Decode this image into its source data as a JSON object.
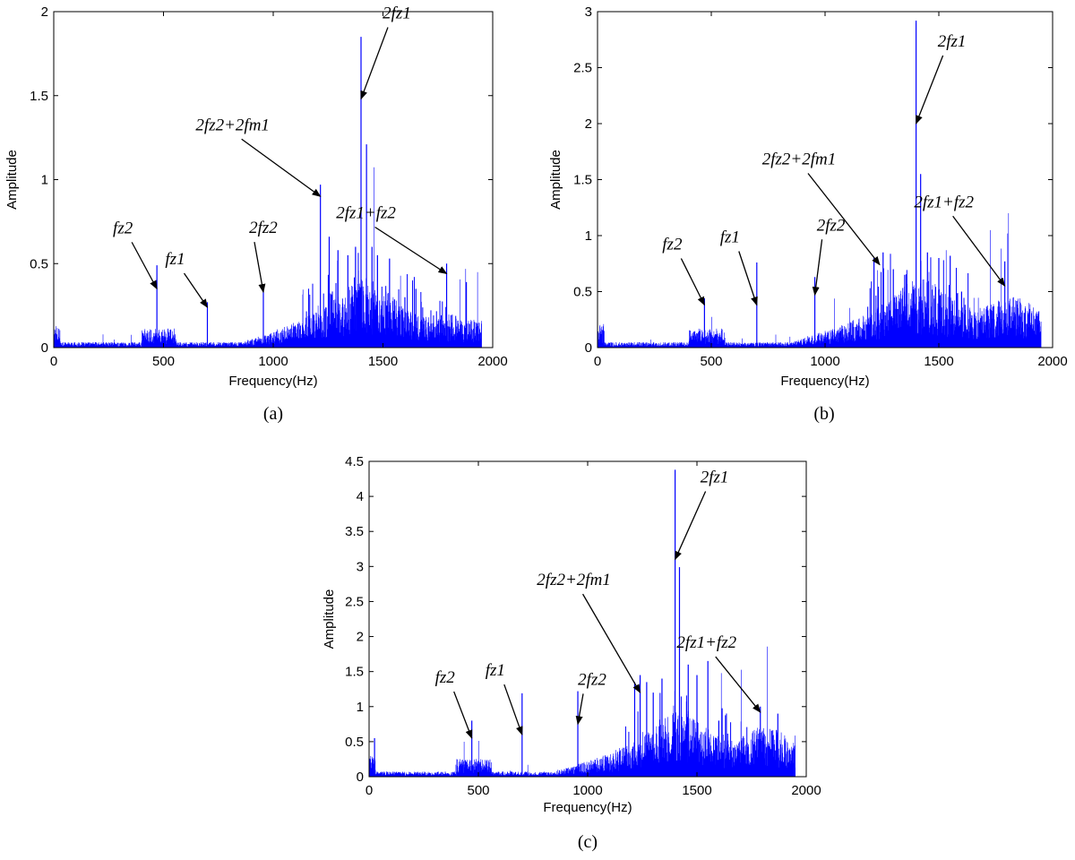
{
  "figure": {
    "panels": [
      {
        "id": "a",
        "label": "(a)"
      },
      {
        "id": "b",
        "label": "(b)"
      },
      {
        "id": "c",
        "label": "(c)"
      }
    ]
  },
  "chart_data": [
    {
      "panel": "(a)",
      "type": "line",
      "style": "spectrum stems",
      "color": "#0000ff",
      "xlabel": "Frequency(Hz)",
      "ylabel": "Amplitude",
      "xlim": [
        0,
        2000
      ],
      "ylim": [
        0,
        2
      ],
      "xticks": [
        0,
        500,
        1000,
        1500,
        2000
      ],
      "yticks": [
        0,
        0.5,
        1,
        1.5,
        2
      ],
      "ytick_labels": [
        "0",
        "0.5",
        "1",
        "1.5",
        "2"
      ],
      "peaks": [
        {
          "x": 470,
          "y": 0.49
        },
        {
          "x": 700,
          "y": 0.27
        },
        {
          "x": 955,
          "y": 0.36
        },
        {
          "x": 1215,
          "y": 0.97
        },
        {
          "x": 1255,
          "y": 0.66
        },
        {
          "x": 1295,
          "y": 0.58
        },
        {
          "x": 1340,
          "y": 0.55
        },
        {
          "x": 1375,
          "y": 0.6
        },
        {
          "x": 1400,
          "y": 1.85
        },
        {
          "x": 1425,
          "y": 1.21
        },
        {
          "x": 1450,
          "y": 0.6
        },
        {
          "x": 1475,
          "y": 0.55
        },
        {
          "x": 1530,
          "y": 0.53
        },
        {
          "x": 1600,
          "y": 0.3
        },
        {
          "x": 1650,
          "y": 0.35
        },
        {
          "x": 1790,
          "y": 0.5
        },
        {
          "x": 1880,
          "y": 0.39
        }
      ],
      "annotations": [
        {
          "text": "fz2",
          "x": 470,
          "y": 0.35
        },
        {
          "text": "fz1",
          "x": 700,
          "y": 0.24
        },
        {
          "text": "2fz2",
          "x": 955,
          "y": 0.33
        },
        {
          "text": "2fz2+2fm1",
          "x": 1215,
          "y": 0.9
        },
        {
          "text": "2fz1",
          "x": 1400,
          "y": 1.48
        },
        {
          "text": "2fz1+fz2",
          "x": 1790,
          "y": 0.44
        }
      ]
    },
    {
      "panel": "(b)",
      "type": "line",
      "style": "spectrum stems",
      "color": "#0000ff",
      "xlabel": "Frequency(Hz)",
      "ylabel": "Amplitude",
      "xlim": [
        0,
        2000
      ],
      "ylim": [
        0,
        3
      ],
      "xticks": [
        0,
        500,
        1000,
        1500,
        2000
      ],
      "yticks": [
        0,
        0.5,
        1,
        1.5,
        2,
        2.5,
        3
      ],
      "ytick_labels": [
        "0",
        "0.5",
        "1",
        "1.5",
        "2",
        "2.5",
        "3"
      ],
      "peaks": [
        {
          "x": 470,
          "y": 0.44
        },
        {
          "x": 700,
          "y": 0.76
        },
        {
          "x": 955,
          "y": 0.63
        },
        {
          "x": 1215,
          "y": 0.8
        },
        {
          "x": 1255,
          "y": 0.85
        },
        {
          "x": 1300,
          "y": 0.7
        },
        {
          "x": 1350,
          "y": 0.65
        },
        {
          "x": 1400,
          "y": 2.92
        },
        {
          "x": 1420,
          "y": 1.55
        },
        {
          "x": 1450,
          "y": 0.85
        },
        {
          "x": 1500,
          "y": 0.8
        },
        {
          "x": 1550,
          "y": 0.82
        },
        {
          "x": 1600,
          "y": 0.5
        },
        {
          "x": 1790,
          "y": 0.77
        },
        {
          "x": 1880,
          "y": 0.35
        }
      ],
      "annotations": [
        {
          "text": "fz2",
          "x": 470,
          "y": 0.38
        },
        {
          "text": "fz1",
          "x": 700,
          "y": 0.38
        },
        {
          "text": "2fz2",
          "x": 955,
          "y": 0.47
        },
        {
          "text": "2fz2+2fm1",
          "x": 1240,
          "y": 0.74
        },
        {
          "text": "2fz1",
          "x": 1400,
          "y": 2.0
        },
        {
          "text": "2fz1+fz2",
          "x": 1790,
          "y": 0.55
        }
      ]
    },
    {
      "panel": "(c)",
      "type": "line",
      "style": "spectrum stems",
      "color": "#0000ff",
      "xlabel": "Frequency(Hz)",
      "ylabel": "Amplitude",
      "xlim": [
        0,
        2000
      ],
      "ylim": [
        0,
        4.5
      ],
      "xticks": [
        0,
        500,
        1000,
        1500,
        2000
      ],
      "yticks": [
        0,
        0.5,
        1,
        1.5,
        2,
        2.5,
        3,
        3.5,
        4,
        4.5
      ],
      "ytick_labels": [
        "0",
        "0.5",
        "1",
        "1.5",
        "2",
        "2.5",
        "3",
        "3.5",
        "4",
        "4.5"
      ],
      "peaks": [
        {
          "x": 25,
          "y": 0.55
        },
        {
          "x": 470,
          "y": 0.8
        },
        {
          "x": 700,
          "y": 1.19
        },
        {
          "x": 955,
          "y": 1.22
        },
        {
          "x": 1215,
          "y": 1.35
        },
        {
          "x": 1240,
          "y": 1.45
        },
        {
          "x": 1270,
          "y": 1.35
        },
        {
          "x": 1300,
          "y": 1.2
        },
        {
          "x": 1340,
          "y": 1.4
        },
        {
          "x": 1400,
          "y": 4.38
        },
        {
          "x": 1420,
          "y": 2.99
        },
        {
          "x": 1460,
          "y": 1.6
        },
        {
          "x": 1500,
          "y": 1.45
        },
        {
          "x": 1550,
          "y": 1.65
        },
        {
          "x": 1600,
          "y": 0.8
        },
        {
          "x": 1790,
          "y": 1.0
        },
        {
          "x": 1870,
          "y": 0.9
        }
      ],
      "annotations": [
        {
          "text": "fz2",
          "x": 470,
          "y": 0.55
        },
        {
          "text": "fz1",
          "x": 700,
          "y": 0.6
        },
        {
          "text": "2fz2",
          "x": 955,
          "y": 0.75
        },
        {
          "text": "2fz2+2fm1",
          "x": 1240,
          "y": 1.2
        },
        {
          "text": "2fz1",
          "x": 1400,
          "y": 3.1
        },
        {
          "text": "2fz1+fz2",
          "x": 1790,
          "y": 0.92
        }
      ]
    }
  ]
}
